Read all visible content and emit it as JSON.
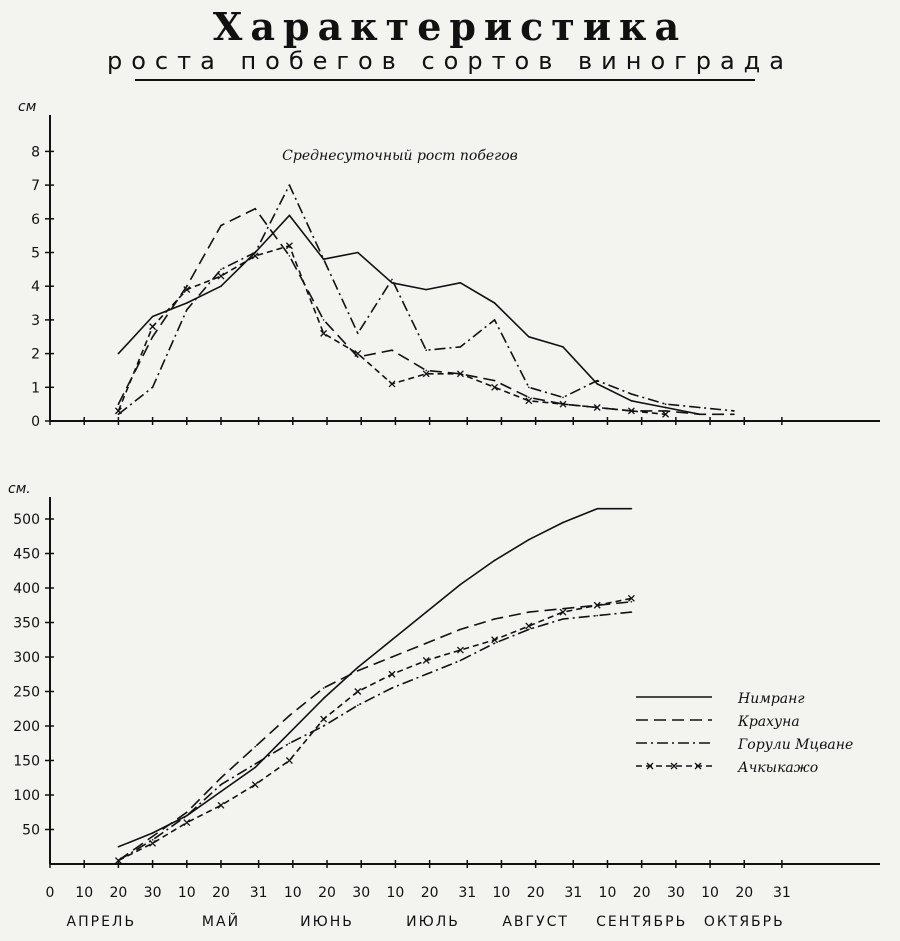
{
  "page": {
    "title": "Характеристика",
    "subtitle": "роста побегов сортов винограда"
  },
  "chart_data": [
    {
      "type": "line",
      "title": "Среднесуточный рост побегов",
      "ylabel": "см",
      "ylim": [
        0,
        8
      ],
      "yticks": [
        0,
        1,
        2,
        3,
        4,
        5,
        6,
        7,
        8
      ],
      "x_unit": "day index from April 1 (ticks every ~10 days)",
      "series": [
        {
          "name": "Нимранг",
          "style": "solid",
          "x": [
            20,
            30,
            40,
            50,
            60,
            70,
            80,
            90,
            100,
            110,
            120,
            130,
            140,
            150,
            160,
            170,
            180,
            190
          ],
          "y": [
            2.0,
            3.1,
            3.5,
            4.0,
            5.0,
            6.1,
            4.8,
            5.0,
            4.1,
            3.9,
            4.1,
            3.5,
            2.5,
            2.2,
            1.1,
            0.6,
            0.4,
            0.2
          ]
        },
        {
          "name": "Кpахуна",
          "style": "dashed",
          "x": [
            20,
            30,
            40,
            50,
            60,
            70,
            80,
            90,
            100,
            110,
            120,
            130,
            140,
            150,
            160,
            170,
            180,
            190,
            200
          ],
          "y": [
            0.5,
            2.5,
            4.0,
            5.8,
            6.3,
            4.9,
            3.0,
            1.9,
            2.1,
            1.5,
            1.4,
            1.2,
            0.7,
            0.5,
            0.4,
            0.3,
            0.3,
            0.2,
            0.2
          ]
        },
        {
          "name": "Горули Мцване",
          "style": "dashdot",
          "x": [
            20,
            30,
            40,
            50,
            60,
            70,
            80,
            90,
            100,
            110,
            120,
            130,
            140,
            150,
            160,
            170,
            180,
            190,
            200
          ],
          "y": [
            0.2,
            1.0,
            3.3,
            4.5,
            5.0,
            7.0,
            4.8,
            2.6,
            4.2,
            2.1,
            2.2,
            3.0,
            1.0,
            0.7,
            1.2,
            0.8,
            0.5,
            0.4,
            0.3
          ]
        },
        {
          "name": "Ачкыкажо",
          "style": "x-line",
          "x": [
            20,
            30,
            40,
            50,
            60,
            70,
            80,
            90,
            100,
            110,
            120,
            130,
            140,
            150,
            160,
            170,
            180
          ],
          "y": [
            0.3,
            2.8,
            3.9,
            4.3,
            4.9,
            5.2,
            2.6,
            2.0,
            1.1,
            1.4,
            1.4,
            1.0,
            0.6,
            0.5,
            0.4,
            0.3,
            0.2
          ]
        }
      ]
    },
    {
      "type": "line",
      "ylabel": "см.",
      "ylim": [
        0,
        530
      ],
      "yticks": [
        50,
        100,
        150,
        200,
        250,
        300,
        350,
        400,
        450,
        500
      ],
      "legend": "right-middle",
      "series": [
        {
          "name": "Нимранг",
          "style": "solid",
          "x": [
            20,
            30,
            40,
            50,
            60,
            70,
            80,
            90,
            100,
            110,
            120,
            130,
            140,
            150,
            160,
            170
          ],
          "y": [
            25,
            45,
            70,
            105,
            140,
            190,
            240,
            285,
            325,
            365,
            405,
            440,
            470,
            495,
            515,
            515
          ]
        },
        {
          "name": "Кpахуна",
          "style": "dashed",
          "x": [
            20,
            30,
            40,
            50,
            60,
            70,
            80,
            90,
            100,
            110,
            120,
            130,
            140,
            150,
            160,
            170
          ],
          "y": [
            5,
            40,
            75,
            125,
            170,
            215,
            255,
            280,
            300,
            320,
            340,
            355,
            365,
            370,
            375,
            380
          ]
        },
        {
          "name": "Горули Мцване",
          "style": "dashdot",
          "x": [
            20,
            30,
            40,
            50,
            60,
            70,
            80,
            90,
            100,
            110,
            120,
            130,
            140,
            150,
            160,
            170
          ],
          "y": [
            5,
            35,
            70,
            115,
            145,
            175,
            200,
            230,
            255,
            275,
            295,
            320,
            340,
            355,
            360,
            365
          ]
        },
        {
          "name": "Ачкыкажо",
          "style": "x-line",
          "x": [
            20,
            30,
            40,
            50,
            60,
            70,
            80,
            90,
            100,
            110,
            120,
            130,
            140,
            150,
            160,
            170
          ],
          "y": [
            5,
            30,
            60,
            85,
            115,
            150,
            210,
            250,
            275,
            295,
            310,
            325,
            345,
            365,
            375,
            385
          ]
        }
      ]
    }
  ],
  "x_axis": {
    "tick_labels": [
      "0",
      "10",
      "20",
      "30",
      "10",
      "20",
      "31",
      "10",
      "20",
      "30",
      "10",
      "20",
      "31",
      "10",
      "20",
      "31",
      "10",
      "20",
      "30",
      "10",
      "20",
      "31"
    ],
    "tick_x": [
      0,
      10,
      20,
      30,
      40,
      50,
      61,
      71,
      81,
      91,
      101,
      111,
      122,
      132,
      142,
      153,
      163,
      173,
      183,
      193,
      203,
      214
    ],
    "months": [
      "АПРЕЛЬ",
      "МАЙ",
      "ИЮНЬ",
      "ИЮЛЬ",
      "АВГУСТ",
      "СЕНТЯБРЬ",
      "ОКТЯБРЬ"
    ],
    "month_x": [
      15,
      50,
      81,
      112,
      142,
      173,
      203
    ]
  }
}
